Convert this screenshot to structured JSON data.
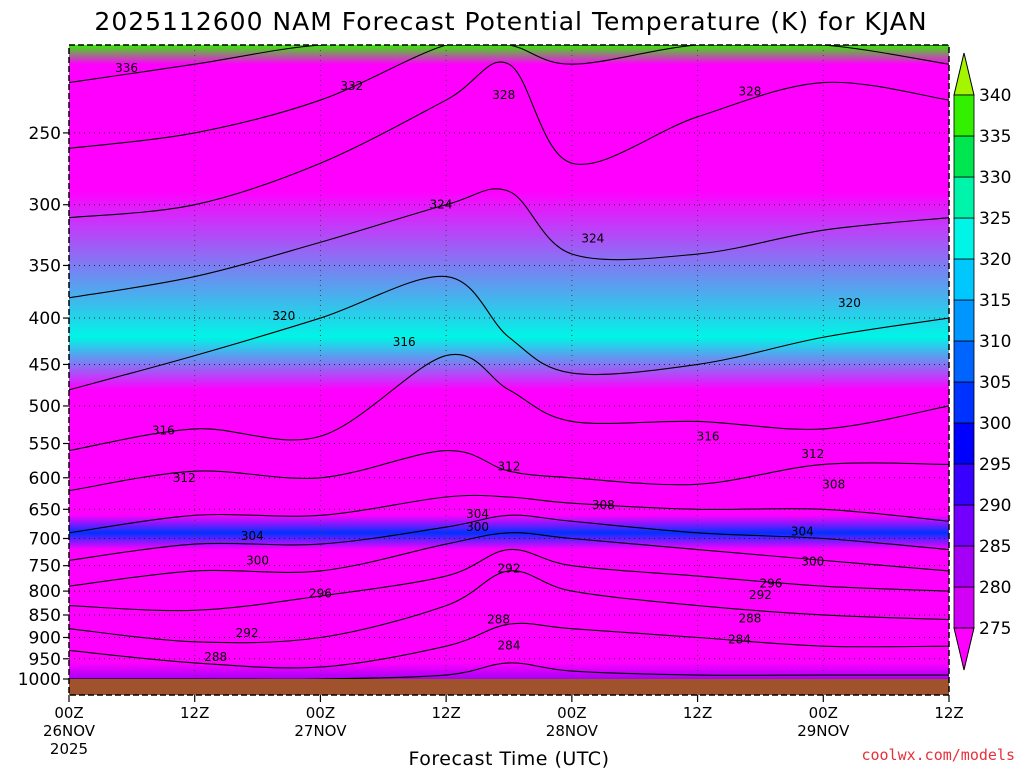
{
  "chart_data": {
    "type": "heatmap",
    "title": "2025112600 NAM Forecast Potential Temperature (K) for KJAN",
    "xlabel": "Forecast Time (UTC)",
    "ylabel": "",
    "credit": "coolwx.com/models",
    "y_axis": {
      "unit": "hPa",
      "scale": "log",
      "inverted": true,
      "range": [
        1000,
        200
      ],
      "ticks": [
        250,
        300,
        350,
        400,
        450,
        500,
        550,
        600,
        650,
        700,
        750,
        800,
        850,
        900,
        950,
        1000
      ]
    },
    "x_axis": {
      "range_hours": [
        0,
        84
      ],
      "ticks": [
        {
          "hour": 0,
          "label": "00Z",
          "date": "26NOV",
          "year": "2025"
        },
        {
          "hour": 12,
          "label": "12Z",
          "date": "",
          "year": ""
        },
        {
          "hour": 24,
          "label": "00Z",
          "date": "27NOV",
          "year": ""
        },
        {
          "hour": 36,
          "label": "12Z",
          "date": "",
          "year": ""
        },
        {
          "hour": 48,
          "label": "00Z",
          "date": "28NOV",
          "year": ""
        },
        {
          "hour": 60,
          "label": "12Z",
          "date": "",
          "year": ""
        },
        {
          "hour": 72,
          "label": "00Z",
          "date": "29NOV",
          "year": ""
        },
        {
          "hour": 84,
          "label": "12Z",
          "date": "",
          "year": ""
        }
      ]
    },
    "colorbar": {
      "levels": [
        275,
        280,
        285,
        290,
        295,
        300,
        305,
        310,
        315,
        320,
        325,
        330,
        335,
        340
      ],
      "colors": [
        "#ff00ff",
        "#d200f5",
        "#a500f5",
        "#7300ff",
        "#3700ff",
        "#0000ff",
        "#0032ff",
        "#0064ff",
        "#0096ff",
        "#00c8ff",
        "#00f5e6",
        "#00f5aa",
        "#00e650",
        "#32f000",
        "#a5f500"
      ]
    },
    "grid": true,
    "surface_color": "#a0522d",
    "profile_hours": [
      0,
      12,
      24,
      36,
      42,
      48,
      60,
      72,
      84
    ],
    "isentropes": [
      {
        "theta": 284,
        "p": [
          1000,
          1000,
          1000,
          990,
          960,
          980,
          990,
          990,
          990
        ]
      },
      {
        "theta": 288,
        "p": [
          930,
          960,
          970,
          920,
          870,
          880,
          900,
          920,
          920
        ]
      },
      {
        "theta": 292,
        "p": [
          880,
          910,
          900,
          830,
          760,
          800,
          830,
          850,
          860
        ]
      },
      {
        "theta": 296,
        "p": [
          830,
          840,
          810,
          770,
          720,
          750,
          770,
          790,
          800
        ]
      },
      {
        "theta": 300,
        "p": [
          790,
          760,
          760,
          710,
          690,
          700,
          720,
          740,
          760
        ]
      },
      {
        "theta": 304,
        "p": [
          740,
          710,
          710,
          680,
          660,
          670,
          690,
          700,
          720
        ]
      },
      {
        "theta": 308,
        "p": [
          690,
          660,
          660,
          630,
          630,
          640,
          650,
          650,
          670
        ]
      },
      {
        "theta": 312,
        "p": [
          620,
          590,
          600,
          560,
          590,
          600,
          610,
          580,
          580
        ]
      },
      {
        "theta": 316,
        "p": [
          560,
          530,
          540,
          440,
          480,
          520,
          520,
          530,
          500
        ]
      },
      {
        "theta": 320,
        "p": [
          480,
          440,
          400,
          360,
          420,
          460,
          450,
          420,
          400
        ]
      },
      {
        "theta": 324,
        "p": [
          380,
          360,
          330,
          300,
          290,
          340,
          340,
          320,
          310
        ]
      },
      {
        "theta": 328,
        "p": [
          310,
          300,
          270,
          230,
          210,
          270,
          240,
          220,
          230
        ]
      },
      {
        "theta": 332,
        "p": [
          260,
          250,
          230,
          200,
          200,
          210,
          200,
          200,
          210
        ]
      },
      {
        "theta": 336,
        "p": [
          220,
          210,
          200,
          200,
          200,
          200,
          200,
          200,
          200
        ]
      }
    ],
    "contour_labels": [
      {
        "theta": 336,
        "hour": 5.5,
        "p": 212
      },
      {
        "theta": 332,
        "hour": 27,
        "p": 222
      },
      {
        "theta": 328,
        "hour": 41.5,
        "p": 227
      },
      {
        "theta": 328,
        "hour": 65,
        "p": 225
      },
      {
        "theta": 324,
        "hour": 35.5,
        "p": 300
      },
      {
        "theta": 324,
        "hour": 50,
        "p": 327
      },
      {
        "theta": 320,
        "hour": 20.5,
        "p": 398
      },
      {
        "theta": 320,
        "hour": 74.5,
        "p": 385
      },
      {
        "theta": 316,
        "hour": 32,
        "p": 425
      },
      {
        "theta": 316,
        "hour": 9,
        "p": 532
      },
      {
        "theta": 316,
        "hour": 61,
        "p": 540
      },
      {
        "theta": 312,
        "hour": 11,
        "p": 600
      },
      {
        "theta": 312,
        "hour": 42,
        "p": 583
      },
      {
        "theta": 312,
        "hour": 71,
        "p": 565
      },
      {
        "theta": 308,
        "hour": 51,
        "p": 643
      },
      {
        "theta": 308,
        "hour": 73,
        "p": 610
      },
      {
        "theta": 304,
        "hour": 17.5,
        "p": 696
      },
      {
        "theta": 304,
        "hour": 39,
        "p": 658
      },
      {
        "theta": 304,
        "hour": 70,
        "p": 688
      },
      {
        "theta": 300,
        "hour": 18,
        "p": 740
      },
      {
        "theta": 300,
        "hour": 39,
        "p": 680
      },
      {
        "theta": 300,
        "hour": 71,
        "p": 742
      },
      {
        "theta": 296,
        "hour": 24,
        "p": 805
      },
      {
        "theta": 296,
        "hour": 67,
        "p": 785
      },
      {
        "theta": 292,
        "hour": 42,
        "p": 755
      },
      {
        "theta": 292,
        "hour": 66,
        "p": 808
      },
      {
        "theta": 292,
        "hour": 17,
        "p": 890
      },
      {
        "theta": 288,
        "hour": 41,
        "p": 860
      },
      {
        "theta": 288,
        "hour": 65,
        "p": 858
      },
      {
        "theta": 288,
        "hour": 14,
        "p": 946
      },
      {
        "theta": 284,
        "hour": 42,
        "p": 918
      },
      {
        "theta": 284,
        "hour": 64,
        "p": 905
      }
    ]
  }
}
